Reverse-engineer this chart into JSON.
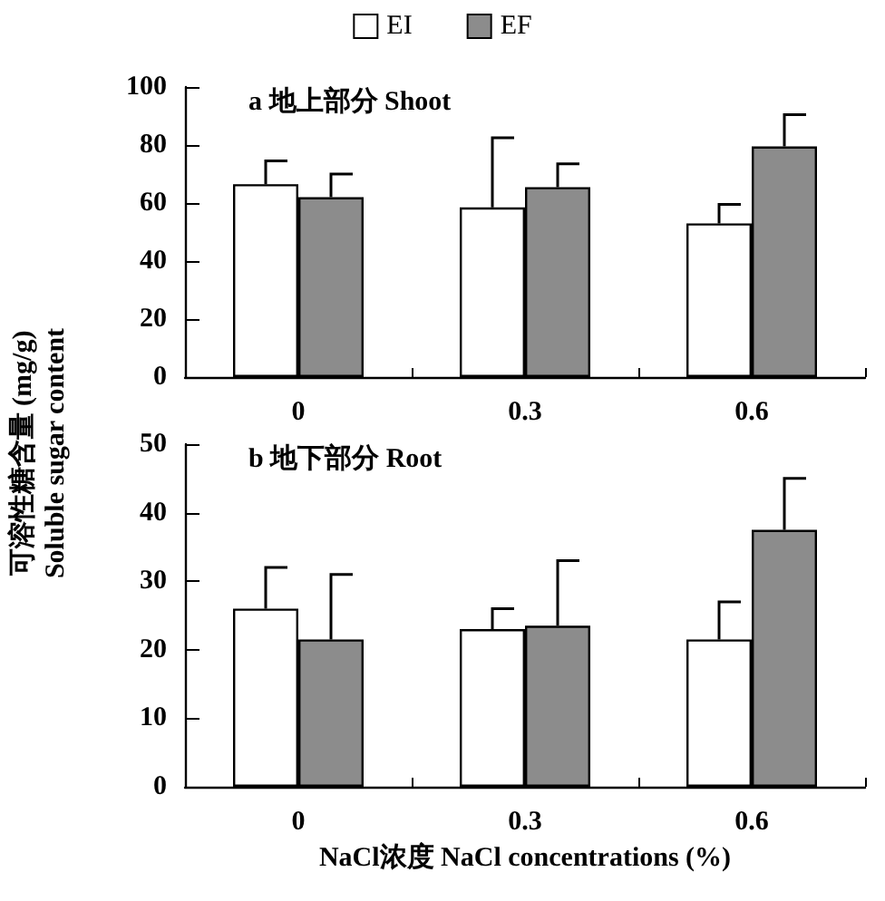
{
  "chart_data": [
    {
      "type": "bar",
      "title": "a 地上部分 Shoot",
      "ylabel": "可溶性糖含量 (mg/g)\nSoluble sugar content",
      "categories": [
        "0",
        "0.3",
        "0.6"
      ],
      "series": [
        {
          "name": "EI",
          "color": "#ffffff",
          "values": [
            66.5,
            58.5,
            53
          ],
          "errors": [
            [
              66.5,
              74.5
            ],
            [
              58.5,
              82.5
            ],
            [
              53,
              59.5
            ]
          ]
        },
        {
          "name": "EF",
          "color": "#8c8c8c",
          "values": [
            62,
            65.5,
            79.5
          ],
          "errors": [
            [
              62,
              70
            ],
            [
              65.5,
              73.5
            ],
            [
              79.5,
              90.5
            ]
          ]
        }
      ],
      "ylim": [
        0,
        100
      ],
      "yticks": [
        0,
        20,
        40,
        60,
        80,
        100
      ],
      "grid": false,
      "legend": "top"
    },
    {
      "type": "bar",
      "title": "b 地下部分 Root",
      "xlabel": "NaCl浓度 NaCl concentrations (%)",
      "categories": [
        "0",
        "0.3",
        "0.6"
      ],
      "series": [
        {
          "color": "#ffffff",
          "values": [
            26,
            23,
            21.5
          ],
          "errors": [
            [
              26,
              32
            ],
            [
              23,
              26
            ],
            [
              21.5,
              27
            ]
          ]
        },
        {
          "color": "#8c8c8c",
          "values": [
            21.5,
            23.5,
            37.5
          ],
          "errors": [
            [
              21.5,
              31
            ],
            [
              23.5,
              33
            ],
            [
              37.5,
              45
            ]
          ]
        }
      ],
      "ylim": [
        0,
        50
      ],
      "yticks": [
        0,
        10,
        20,
        30,
        40,
        50
      ],
      "grid": false,
      "legend": false
    }
  ]
}
